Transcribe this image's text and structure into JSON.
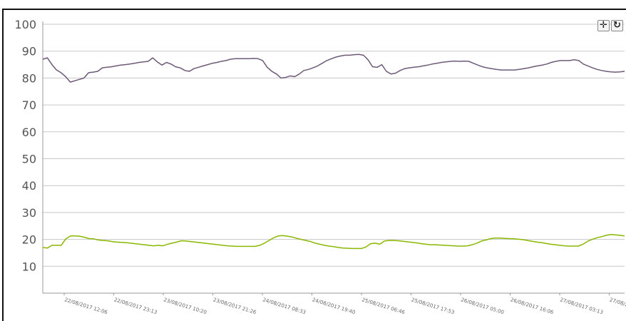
{
  "chart_data": {
    "type": "line",
    "title": "",
    "xlabel": "",
    "ylabel": "",
    "ylim": [
      0,
      100
    ],
    "yticks": [
      10,
      20,
      30,
      40,
      50,
      60,
      70,
      80,
      90,
      100
    ],
    "grid": true,
    "x_tick_labels": [
      "22/08/2017 12:06",
      "22/08/2017 23:13",
      "23/08/2017 10:20",
      "23/08/2017 21:26",
      "24/08/2017 08:33",
      "24/08/2017 19:40",
      "25/08/2017 06:46",
      "25/08/2017 17:53",
      "26/08/2017 05:00",
      "26/08/2017 16:06",
      "27/08/2017 03:13",
      "27/08/20"
    ],
    "series": [
      {
        "color": "#6e5a78",
        "values": [
          87,
          87.5,
          85,
          83,
          82,
          80.5,
          78.5,
          79,
          79.5,
          80,
          82,
          82.2,
          82.5,
          83.8,
          84,
          84.2,
          84.5,
          84.8,
          85,
          85.2,
          85.5,
          85.8,
          86,
          86.2,
          87.5,
          86,
          84.8,
          85.8,
          85.2,
          84.2,
          83.8,
          82.8,
          82.5,
          83.5,
          84,
          84.5,
          85,
          85.5,
          85.8,
          86.2,
          86.5,
          87,
          87.2,
          87.2,
          87.2,
          87.2,
          87.3,
          87.2,
          86.5,
          84,
          82.5,
          81.5,
          80,
          80.2,
          80.8,
          80.5,
          81.5,
          82.8,
          83.2,
          83.8,
          84.5,
          85.5,
          86.5,
          87.2,
          87.8,
          88.2,
          88.5,
          88.5,
          88.7,
          88.8,
          88.5,
          86.8,
          84.2,
          84,
          85,
          82.5,
          81.5,
          81.8,
          82.8,
          83.5,
          83.8,
          84,
          84.2,
          84.5,
          84.8,
          85.2,
          85.5,
          85.8,
          86,
          86.2,
          86.3,
          86.2,
          86.3,
          86.2,
          85.5,
          84.8,
          84.2,
          83.8,
          83.5,
          83.2,
          83,
          83,
          83,
          83,
          83.2,
          83.5,
          83.8,
          84.2,
          84.5,
          84.8,
          85.2,
          85.8,
          86.2,
          86.5,
          86.5,
          86.5,
          86.8,
          86.5,
          85.2,
          84.5,
          83.8,
          83.2,
          82.8,
          82.5,
          82.3,
          82.2,
          82.3,
          82.5
        ]
      },
      {
        "color": "#8ab800",
        "values": [
          17,
          16.8,
          17.8,
          17.8,
          17.8,
          20.2,
          21.3,
          21.3,
          21.2,
          20.8,
          20.3,
          20.2,
          19.8,
          19.6,
          19.5,
          19.2,
          19,
          18.9,
          18.8,
          18.6,
          18.4,
          18.2,
          18,
          17.8,
          17.6,
          17.8,
          17.6,
          18.2,
          18.6,
          19,
          19.5,
          19.4,
          19.2,
          19,
          18.8,
          18.6,
          18.4,
          18.2,
          18,
          17.8,
          17.6,
          17.5,
          17.4,
          17.4,
          17.4,
          17.4,
          17.4,
          17.8,
          18.6,
          19.6,
          20.6,
          21.3,
          21.4,
          21.2,
          20.9,
          20.4,
          20,
          19.6,
          19.2,
          18.6,
          18.2,
          17.8,
          17.5,
          17.3,
          17,
          16.8,
          16.7,
          16.6,
          16.6,
          16.6,
          17.2,
          18.4,
          18.6,
          18.2,
          19.4,
          19.6,
          19.6,
          19.5,
          19.3,
          19.1,
          18.9,
          18.7,
          18.4,
          18.2,
          18,
          18,
          17.9,
          17.8,
          17.7,
          17.6,
          17.5,
          17.5,
          17.6,
          18,
          18.6,
          19.4,
          19.8,
          20.3,
          20.5,
          20.5,
          20.4,
          20.3,
          20.2,
          20.1,
          19.9,
          19.6,
          19.3,
          19.0,
          18.8,
          18.5,
          18.2,
          18,
          17.8,
          17.6,
          17.5,
          17.5,
          17.5,
          18.2,
          19.3,
          20,
          20.6,
          21,
          21.5,
          21.8,
          21.7,
          21.5,
          21.3
        ]
      }
    ]
  },
  "toolbar": {
    "pan_icon": "move-icon",
    "reset_icon": "refresh-icon",
    "pan_glyph": "✛",
    "reset_glyph": "↻"
  },
  "colors": {
    "grid": "#c8c8c8",
    "tick_label": "#555555",
    "axis": "#9a9a9a"
  }
}
